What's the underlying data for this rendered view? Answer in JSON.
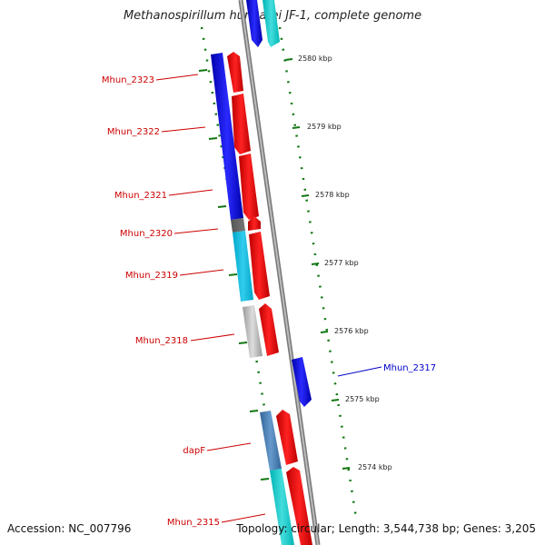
{
  "title": "Methanospirillum hungatei JF-1, complete genome",
  "accession": "Accession: NC_007796",
  "topology": "Topology: circular; Length: 3,544,738 bp; Genes: 3,205",
  "colors": {
    "label_red": "#cc0000",
    "label_blue": "#0000cc",
    "tick_green": "#117711",
    "backbone": "#888888"
  },
  "scale_ticks": [
    "2580 kbp",
    "2579 kbp",
    "2578 kbp",
    "2577 kbp",
    "2576 kbp",
    "2575 kbp",
    "2574 kbp"
  ],
  "gene_labels": [
    {
      "text": "Mhun_2323",
      "color": "#cc0000"
    },
    {
      "text": "Mhun_2322",
      "color": "#cc0000"
    },
    {
      "text": "Mhun_2321",
      "color": "#cc0000"
    },
    {
      "text": "Mhun_2320",
      "color": "#cc0000"
    },
    {
      "text": "Mhun_2319",
      "color": "#cc0000"
    },
    {
      "text": "Mhun_2318",
      "color": "#cc0000"
    },
    {
      "text": "Mhun_2317",
      "color": "#0000cc"
    },
    {
      "text": "dapF",
      "color": "#cc0000"
    },
    {
      "text": "Mhun_2315",
      "color": "#cc0000"
    }
  ]
}
